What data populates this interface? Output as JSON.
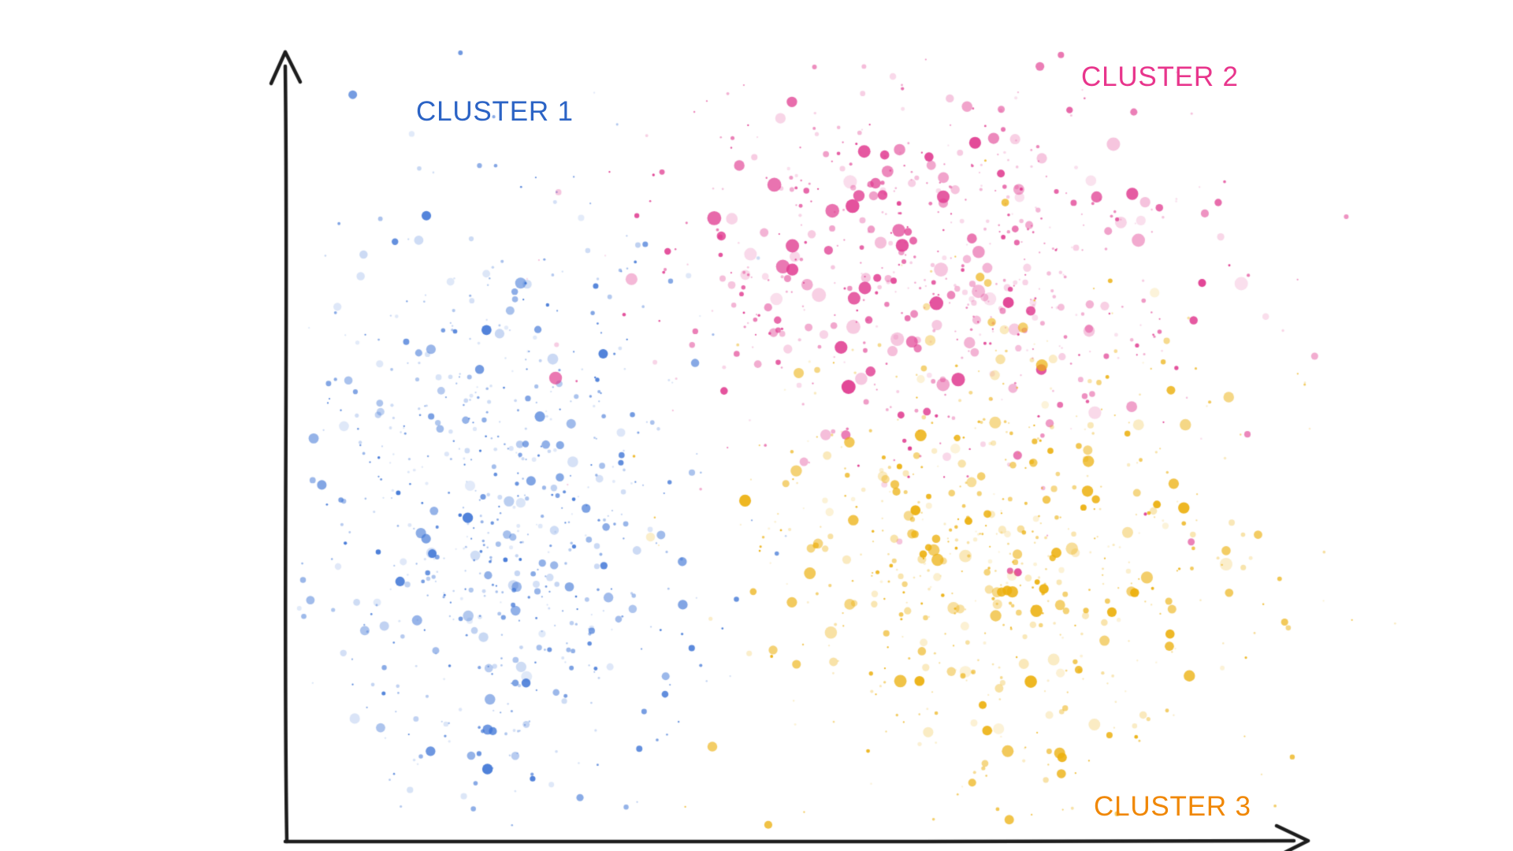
{
  "chart_data": {
    "type": "scatter",
    "title": "",
    "xlabel": "",
    "ylabel": "",
    "background": "#ffffff",
    "axes": {
      "style": "hand-drawn black arrows, no ticks, no tick labels",
      "color": "#1d1d1d",
      "x_range": [
        0,
        1
      ],
      "y_range": [
        0,
        1
      ]
    },
    "legend": "inline colored labels near each cluster",
    "series": [
      {
        "name": "CLUSTER 1",
        "label_color": "#2b63c5",
        "point_color": "#4076d6",
        "count": 700,
        "center": {
          "x": 0.21,
          "y": 0.41
        },
        "spread": {
          "x": 0.095,
          "y": 0.205
        },
        "min_radius": 1.1,
        "max_radius": 7,
        "seed": 101
      },
      {
        "name": "CLUSTER 2",
        "label_color": "#e8358c",
        "point_color": "#e03b90",
        "count": 620,
        "center": {
          "x": 0.62,
          "y": 0.73
        },
        "spread": {
          "x": 0.135,
          "y": 0.115
        },
        "min_radius": 1.1,
        "max_radius": 9,
        "seed": 202
      },
      {
        "name": "CLUSTER 3",
        "label_color": "#f08705",
        "point_color": "#ecb00e",
        "count": 620,
        "center": {
          "x": 0.7,
          "y": 0.37
        },
        "spread": {
          "x": 0.125,
          "y": 0.145
        },
        "min_radius": 1.1,
        "max_radius": 8,
        "seed": 303
      }
    ]
  }
}
